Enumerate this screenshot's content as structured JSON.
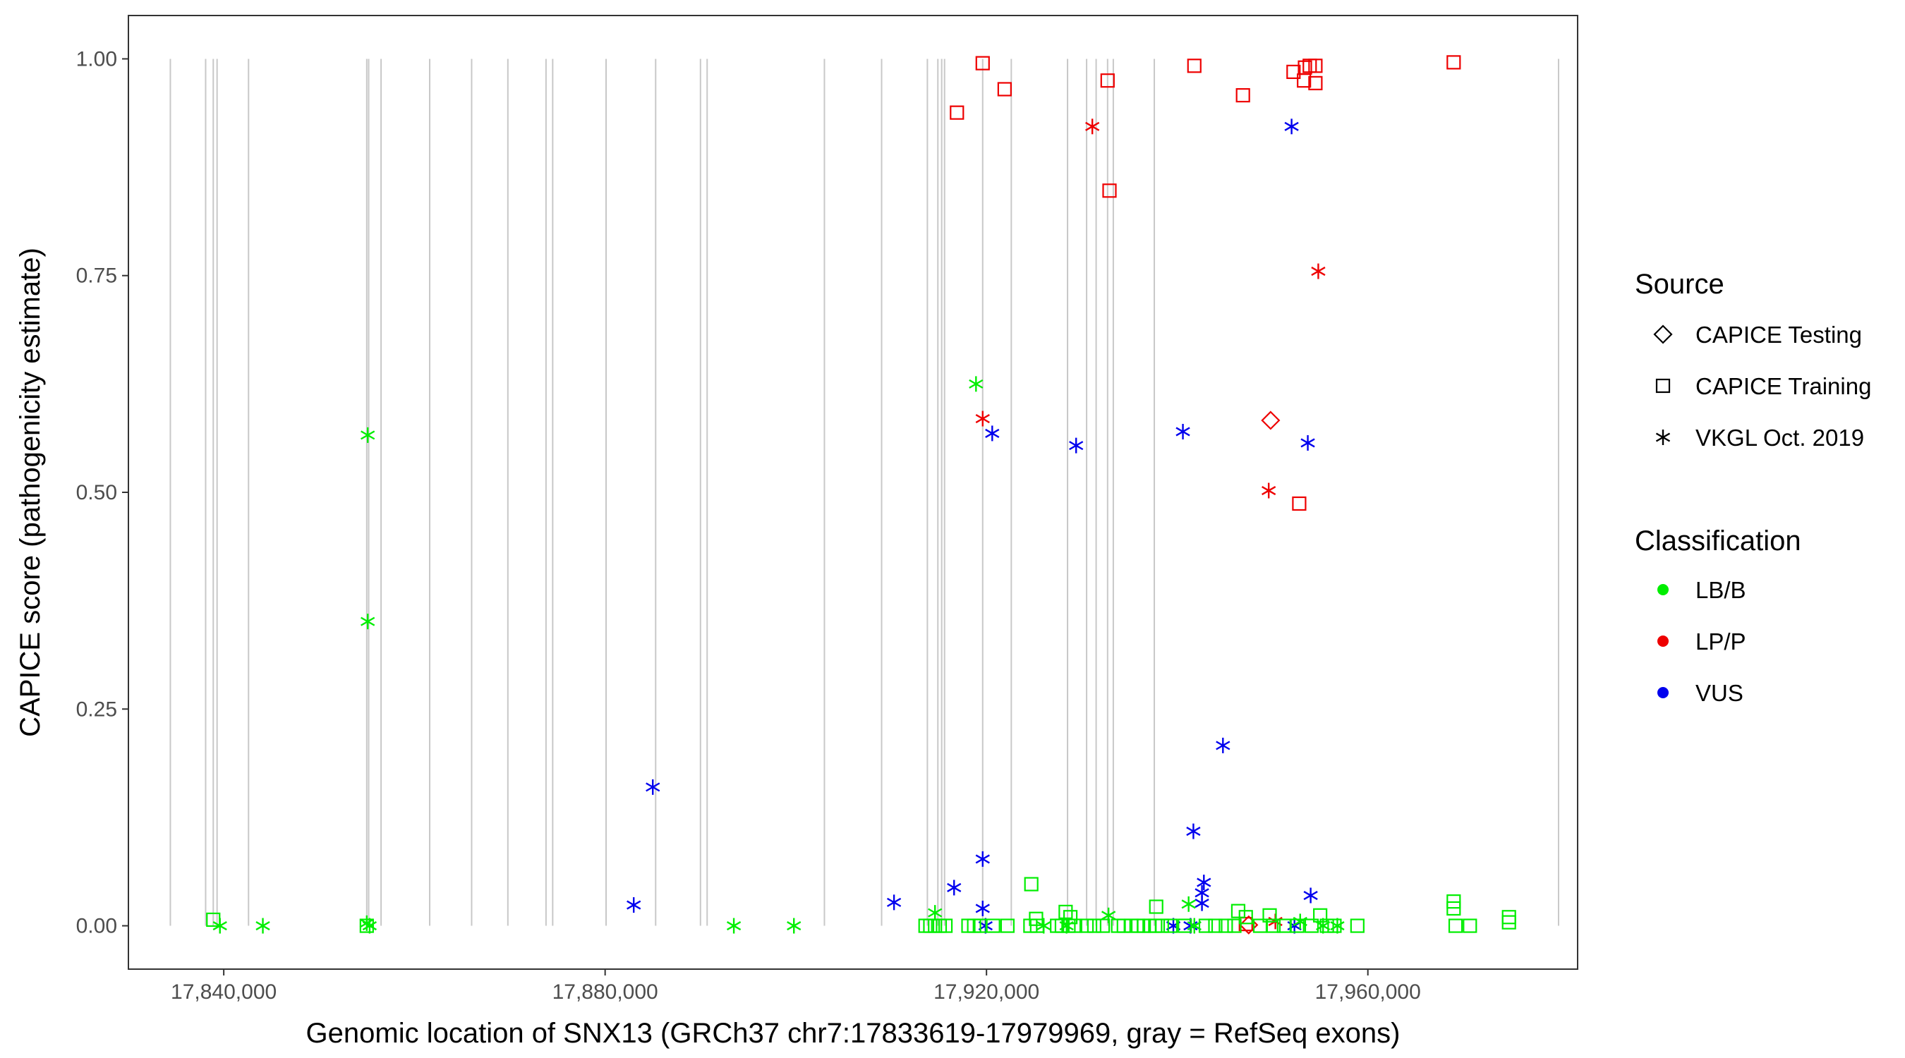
{
  "chart_data": {
    "type": "scatter",
    "xlabel": "Genomic location of SNX13 (GRCh37 chr7:17833619-17979969, gray = RefSeq exons)",
    "ylabel": "CAPICE score (pathogenicity estimate)",
    "xlim": [
      17830000,
      17982000
    ],
    "ylim": [
      -0.05,
      1.05
    ],
    "x_ticks": [
      17840000,
      17880000,
      17920000,
      17960000
    ],
    "x_tick_labels": [
      "17,840,000",
      "17,880,000",
      "17,920,000",
      "17,960,000"
    ],
    "y_ticks": [
      0,
      0.25,
      0.5,
      0.75,
      1
    ],
    "y_tick_labels": [
      "0.00",
      "0.25",
      "0.50",
      "0.75",
      "1.00"
    ],
    "grid": false,
    "exons_color": "#c8c8c8",
    "exons": [
      17834400,
      17838100,
      17838900,
      17839300,
      17842600,
      17855000,
      17855200,
      17856500,
      17861600,
      17866000,
      17869800,
      17873800,
      17874500,
      17880100,
      17885300,
      17890000,
      17890700,
      17903000,
      17909000,
      17913800,
      17914900,
      17915300,
      17915600,
      17919600,
      17922600,
      17928500,
      17930500,
      17931500,
      17932700,
      17933300,
      17937600,
      17980000
    ],
    "legend": {
      "placement": "right",
      "source_title": "Source",
      "source_items": [
        {
          "label": "CAPICE Testing",
          "shape": "diamond"
        },
        {
          "label": "CAPICE Training",
          "shape": "square"
        },
        {
          "label": "VKGL Oct. 2019",
          "shape": "asterisk"
        }
      ],
      "class_title": "Classification",
      "class_items": [
        {
          "label": "LB/B",
          "color": "#00ee00"
        },
        {
          "label": "LP/P",
          "color": "#ee0000"
        },
        {
          "label": "VUS",
          "color": "#0000ee"
        }
      ]
    },
    "series": [
      {
        "source": "CAPICE Training",
        "classification": "LP/P",
        "points": [
          [
            17919600,
            0.995
          ],
          [
            17916900,
            0.938
          ],
          [
            17921900,
            0.965
          ],
          [
            17932700,
            0.975
          ],
          [
            17932900,
            0.848
          ],
          [
            17941800,
            0.992
          ],
          [
            17946900,
            0.958
          ],
          [
            17952200,
            0.985
          ],
          [
            17953400,
            0.99
          ],
          [
            17953900,
            0.992
          ],
          [
            17954500,
            0.992
          ],
          [
            17953300,
            0.975
          ],
          [
            17954500,
            0.972
          ],
          [
            17952800,
            0.487
          ],
          [
            17969000,
            0.996
          ],
          [
            17947200,
            0.002
          ]
        ]
      },
      {
        "source": "VKGL Oct. 2019",
        "classification": "LP/P",
        "points": [
          [
            17931100,
            0.922
          ],
          [
            17954800,
            0.755
          ],
          [
            17919600,
            0.585
          ],
          [
            17949600,
            0.502
          ],
          [
            17950300,
            0.005
          ]
        ]
      },
      {
        "source": "CAPICE Testing",
        "classification": "LP/P",
        "points": [
          [
            17949800,
            0.583
          ],
          [
            17947500,
            0.001
          ]
        ]
      },
      {
        "source": "VKGL Oct. 2019",
        "classification": "VUS",
        "points": [
          [
            17952000,
            0.922
          ],
          [
            17940600,
            0.57
          ],
          [
            17953700,
            0.557
          ],
          [
            17920600,
            0.568
          ],
          [
            17929400,
            0.554
          ],
          [
            17944800,
            0.208
          ],
          [
            17885000,
            0.16
          ],
          [
            17941700,
            0.109
          ],
          [
            17919600,
            0.077
          ],
          [
            17942800,
            0.05
          ],
          [
            17942600,
            0.038
          ],
          [
            17942600,
            0.026
          ],
          [
            17916600,
            0.044
          ],
          [
            17954000,
            0.035
          ],
          [
            17910300,
            0.027
          ],
          [
            17883000,
            0.024
          ],
          [
            17919600,
            0.02
          ],
          [
            17919900,
            0.0
          ],
          [
            17939600,
            0.0
          ],
          [
            17941400,
            0.0
          ],
          [
            17952300,
            0.0
          ]
        ]
      },
      {
        "source": "VKGL Oct. 2019",
        "classification": "LB/B",
        "points": [
          [
            17918900,
            0.625
          ],
          [
            17855100,
            0.566
          ],
          [
            17855100,
            0.351
          ],
          [
            17855000,
            0.003
          ],
          [
            17855300,
            0.0
          ],
          [
            17839600,
            0.0
          ],
          [
            17844100,
            0.0
          ],
          [
            17893500,
            0.0
          ],
          [
            17899800,
            0.0
          ],
          [
            17914600,
            0.015
          ],
          [
            17932800,
            0.012
          ],
          [
            17941200,
            0.025
          ],
          [
            17926000,
            0.0
          ],
          [
            17928400,
            0.0
          ],
          [
            17941800,
            0.0
          ],
          [
            17952900,
            0.005
          ],
          [
            17955300,
            0.0
          ],
          [
            17956800,
            0.0
          ]
        ]
      },
      {
        "source": "CAPICE Training",
        "classification": "LB/B",
        "points": [
          [
            17838900,
            0.007
          ],
          [
            17855000,
            0.0
          ],
          [
            17924700,
            0.048
          ],
          [
            17937800,
            0.022
          ],
          [
            17928300,
            0.016
          ],
          [
            17928800,
            0.01
          ],
          [
            17925200,
            0.008
          ],
          [
            17946400,
            0.017
          ],
          [
            17947200,
            0.01
          ],
          [
            17949700,
            0.012
          ],
          [
            17955000,
            0.012
          ],
          [
            17969000,
            0.028
          ],
          [
            17969000,
            0.02
          ],
          [
            17974800,
            0.01
          ],
          [
            17974800,
            0.004
          ],
          [
            17913600,
            0.0
          ],
          [
            17914100,
            0.0
          ],
          [
            17914600,
            0.0
          ],
          [
            17915100,
            0.0
          ],
          [
            17915700,
            0.0
          ],
          [
            17918100,
            0.0
          ],
          [
            17918700,
            0.0
          ],
          [
            17919300,
            0.0
          ],
          [
            17920700,
            0.0
          ],
          [
            17922200,
            0.0
          ],
          [
            17924600,
            0.0
          ],
          [
            17925300,
            0.0
          ],
          [
            17927400,
            0.0
          ],
          [
            17927900,
            0.0
          ],
          [
            17928600,
            0.0
          ],
          [
            17929300,
            0.0
          ],
          [
            17930500,
            0.0
          ],
          [
            17931300,
            0.0
          ],
          [
            17932200,
            0.0
          ],
          [
            17933800,
            0.0
          ],
          [
            17934400,
            0.0
          ],
          [
            17935200,
            0.0
          ],
          [
            17935900,
            0.0
          ],
          [
            17936500,
            0.0
          ],
          [
            17937100,
            0.0
          ],
          [
            17937700,
            0.0
          ],
          [
            17938400,
            0.0
          ],
          [
            17939300,
            0.0
          ],
          [
            17940800,
            0.0
          ],
          [
            17943000,
            0.0
          ],
          [
            17944000,
            0.0
          ],
          [
            17945100,
            0.0
          ],
          [
            17946000,
            0.0
          ],
          [
            17948700,
            0.0
          ],
          [
            17950100,
            0.0
          ],
          [
            17951200,
            0.0
          ],
          [
            17952600,
            0.0
          ],
          [
            17954100,
            0.0
          ],
          [
            17955700,
            0.0
          ],
          [
            17956500,
            0.0
          ],
          [
            17958900,
            0.0
          ],
          [
            17969200,
            0.0
          ],
          [
            17970700,
            0.0
          ]
        ]
      }
    ]
  }
}
